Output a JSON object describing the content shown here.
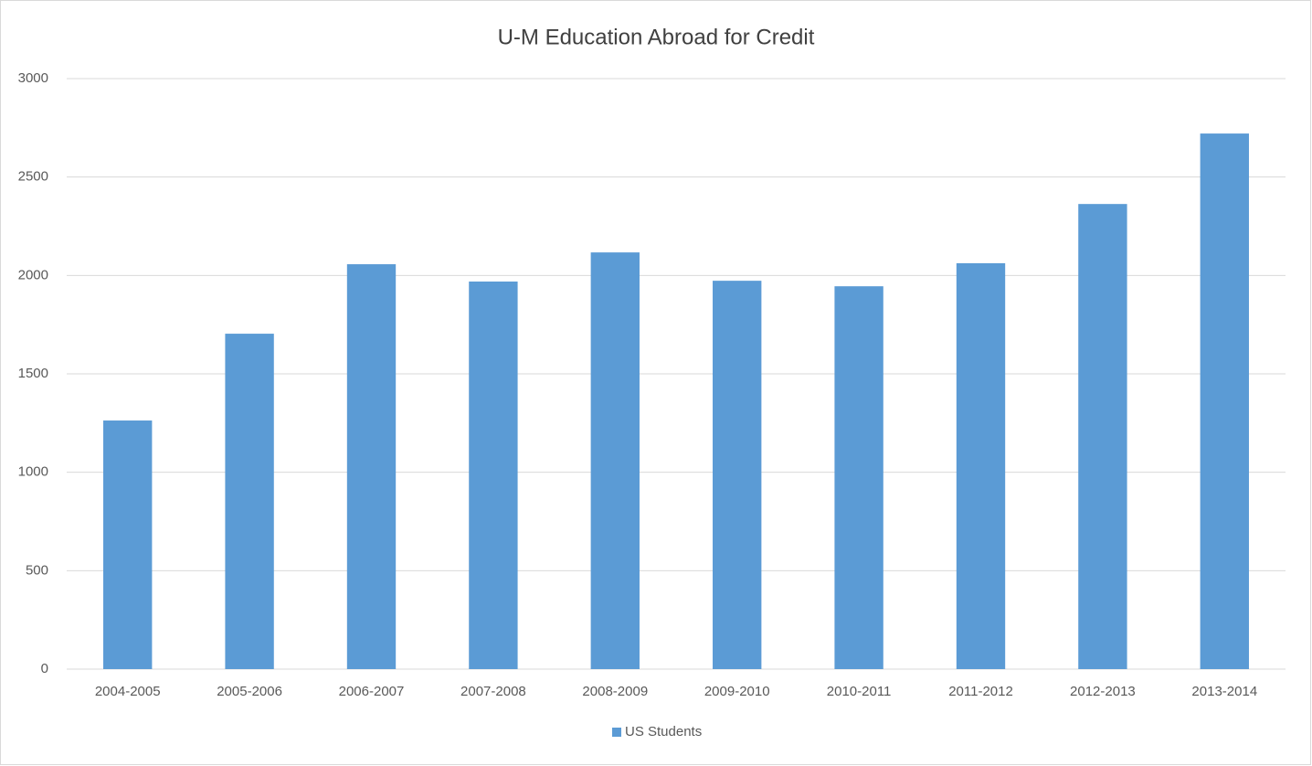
{
  "chart_data": {
    "type": "bar",
    "title": "U-M Education Abroad for Credit",
    "categories": [
      "2004-2005",
      "2005-2006",
      "2006-2007",
      "2007-2008",
      "2008-2009",
      "2009-2010",
      "2010-2011",
      "2011-2012",
      "2012-2013",
      "2013-2014"
    ],
    "series": [
      {
        "name": "US Students",
        "color": "#5b9bd5",
        "values": [
          1263,
          1704,
          2057,
          1969,
          2117,
          1973,
          1945,
          2062,
          2363,
          2721
        ]
      }
    ],
    "ylim": [
      0,
      3000
    ],
    "yticks": [
      0,
      500,
      1000,
      1500,
      2000,
      2500,
      3000
    ],
    "grid": true,
    "legend": "bottom"
  }
}
